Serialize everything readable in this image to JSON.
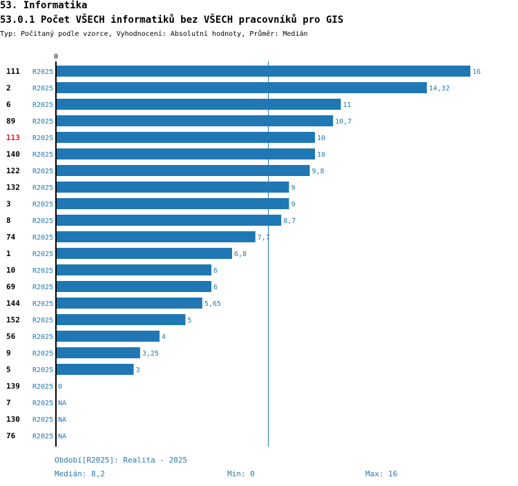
{
  "header": {
    "title": "53. Informatika",
    "subtitle": "53.0.1 Počet VŠECH informatiků bez VŠECH pracovníků pro GIS",
    "meta": "Typ: Počítaný podle vzorce, Vyhodnocení: Absolutní hodnoty, Průměr: Medián"
  },
  "footer": {
    "period": "Období[R2025]: Realita - 2025",
    "median": "Medián: 8,2",
    "min": "Min: 0",
    "max": "Max: 16"
  },
  "colors": {
    "bar": "#1f77b4",
    "highlight": "#e41a1c",
    "axis": "#000000",
    "median_line": "#1f77b4"
  },
  "chart_data": {
    "type": "bar",
    "orientation": "horizontal",
    "title": "53.0.1 Počet VŠECH informatiků bez VŠECH pracovníků pro GIS",
    "axis_tick_label": "0",
    "xlim": [
      0,
      16
    ],
    "median": 8.2,
    "categories": [
      "111",
      "2",
      "6",
      "89",
      "113",
      "140",
      "122",
      "132",
      "3",
      "8",
      "74",
      "1",
      "10",
      "69",
      "144",
      "152",
      "56",
      "9",
      "5",
      "139",
      "7",
      "130",
      "76"
    ],
    "period": "R2025",
    "values": [
      16,
      14.32,
      11,
      10.7,
      10,
      10,
      9.8,
      9,
      9,
      8.7,
      7.7,
      6.8,
      6,
      6,
      5.65,
      5,
      4,
      3.25,
      3,
      0,
      null,
      null,
      null
    ],
    "value_labels": [
      "16",
      "14,32",
      "11",
      "10,7",
      "10",
      "10",
      "9,8",
      "9",
      "9",
      "8,7",
      "7,7",
      "6,8",
      "6",
      "6",
      "5,65",
      "5",
      "4",
      "3,25",
      "3",
      "0",
      "NA",
      "NA",
      "NA"
    ],
    "highlight_category": "113"
  }
}
